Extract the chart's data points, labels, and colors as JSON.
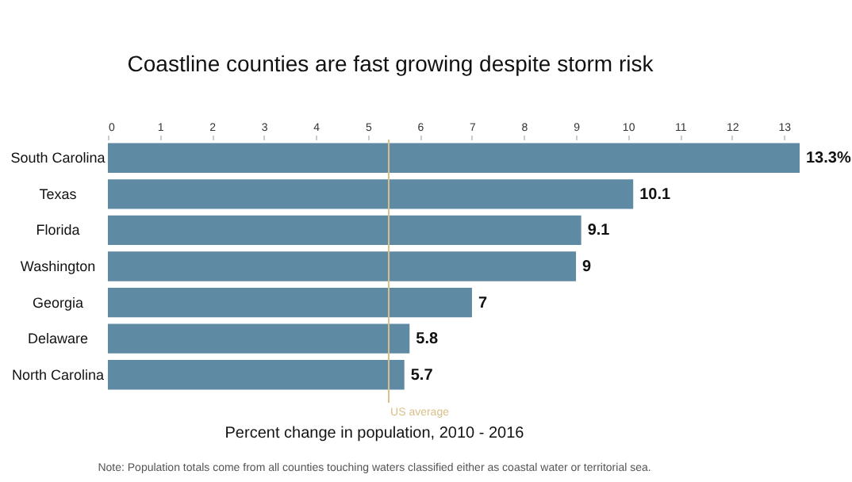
{
  "chart_data": {
    "type": "bar",
    "orientation": "horizontal",
    "title": "Coastline counties are fast growing despite storm risk",
    "xlabel": "Percent change in population, 2010 - 2016",
    "categories": [
      "South Carolina",
      "Texas",
      "Florida",
      "Washington",
      "Georgia",
      "Delaware",
      "North Carolina"
    ],
    "values": [
      13.3,
      10.1,
      9.1,
      9,
      7,
      5.8,
      5.7
    ],
    "value_labels": [
      "13.3%",
      "10.1",
      "9.1",
      "9",
      "7",
      "5.8",
      "5.7"
    ],
    "color": "#5f8aa3",
    "xlim": [
      0,
      13.3
    ],
    "xticks": [
      0,
      1,
      2,
      3,
      4,
      5,
      6,
      7,
      8,
      9,
      10,
      11,
      12,
      13
    ],
    "ref_lines": [
      {
        "axis": "x",
        "value": 5.4,
        "label": "US average",
        "color": "#d9c089"
      }
    ],
    "annotations": [
      "Note: Population totals come from all counties touching waters classified either as coastal water or territorial sea."
    ],
    "grid": false
  }
}
